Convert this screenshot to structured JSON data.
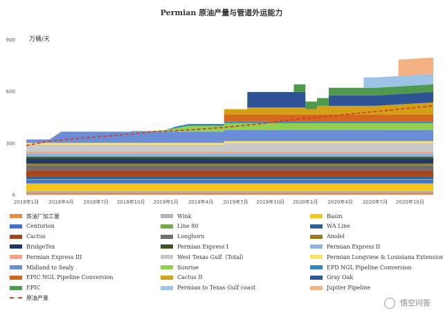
{
  "chart_data": {
    "type": "area",
    "stacked": true,
    "title": "Permian 原油产量与管道外运能力",
    "unit_label": "万桶/天",
    "ylim": [
      0,
      900
    ],
    "yticks": [
      0,
      300,
      600,
      900
    ],
    "xlim": [
      "2018-01",
      "2020-12"
    ],
    "x_ticks": [
      "2018年1月",
      "2018年4月",
      "2018年7月",
      "2018年10月",
      "2019年1月",
      "2019年4月",
      "2019年7月",
      "2019年10月",
      "2020年1月",
      "2020年4月",
      "2020年7月",
      "2020年10月"
    ],
    "legend_placement": "bottom",
    "series": [
      {
        "name": "炼油厂加工量",
        "color": "#e98a4a",
        "points": [
          [
            "2018-01",
            10
          ],
          [
            "2020-12",
            10
          ]
        ]
      },
      {
        "name": "Wink",
        "color": "#b3b3b3",
        "points": [
          [
            "2018-01",
            10
          ],
          [
            "2020-12",
            10
          ]
        ]
      },
      {
        "name": "Basin",
        "color": "#f5c518",
        "points": [
          [
            "2018-01",
            45
          ],
          [
            "2020-12",
            45
          ]
        ]
      },
      {
        "name": "Centurion",
        "color": "#4472c4",
        "points": [
          [
            "2018-01",
            20
          ],
          [
            "2020-12",
            20
          ]
        ]
      },
      {
        "name": "Line 80",
        "color": "#70ad47",
        "points": [
          [
            "2018-01",
            5
          ],
          [
            "2020-12",
            5
          ]
        ]
      },
      {
        "name": "WA Line",
        "color": "#2e5f9a",
        "points": [
          [
            "2018-01",
            15
          ],
          [
            "2020-12",
            15
          ]
        ]
      },
      {
        "name": "Cactus",
        "color": "#a5461d",
        "points": [
          [
            "2018-01",
            35
          ],
          [
            "2020-12",
            35
          ]
        ]
      },
      {
        "name": "Longhorn",
        "color": "#6f6f6f",
        "points": [
          [
            "2018-01",
            30
          ],
          [
            "2020-12",
            30
          ]
        ]
      },
      {
        "name": "Amdel",
        "color": "#9a7b22",
        "points": [
          [
            "2018-01",
            10
          ],
          [
            "2020-12",
            10
          ]
        ]
      },
      {
        "name": "BridgeTex",
        "color": "#1f3864",
        "points": [
          [
            "2018-01",
            30
          ],
          [
            "2020-12",
            30
          ]
        ]
      },
      {
        "name": "Permian Express I",
        "color": "#375623",
        "points": [
          [
            "2018-01",
            10
          ],
          [
            "2020-12",
            10
          ]
        ]
      },
      {
        "name": "Permian Express II",
        "color": "#8fb4e0",
        "points": [
          [
            "2018-01",
            20
          ],
          [
            "2020-12",
            20
          ]
        ]
      },
      {
        "name": "Permian Express III",
        "color": "#f4a580",
        "points": [
          [
            "2018-01",
            10
          ],
          [
            "2020-12",
            10
          ]
        ]
      },
      {
        "name": "West Texas Gulf（Total）",
        "color": "#c9c9c9",
        "points": [
          [
            "2018-01",
            40
          ],
          [
            "2019-06",
            40
          ],
          [
            "2019-06.01",
            50
          ],
          [
            "2020-12",
            50
          ]
        ]
      },
      {
        "name": "Permian Longview & Louisiana Extension",
        "color": "#ffe26a",
        "points": [
          [
            "2018-01",
            10
          ],
          [
            "2020-12",
            10
          ]
        ]
      },
      {
        "name": "Midland to Sealy",
        "color": "#6c8ed6",
        "points": [
          [
            "2018-01",
            20
          ],
          [
            "2018-03",
            20
          ],
          [
            "2018-04",
            65
          ],
          [
            "2020-12",
            65
          ]
        ]
      },
      {
        "name": "Sunrise",
        "color": "#92d050",
        "points": [
          [
            "2018-01",
            0
          ],
          [
            "2018-10",
            0
          ],
          [
            "2018-10.01",
            5
          ],
          [
            "2018-12",
            5
          ],
          [
            "2019-01",
            10
          ],
          [
            "2019-03",
            35
          ],
          [
            "2019-06",
            35
          ],
          [
            "2019-06.01",
            40
          ],
          [
            "2020-12",
            40
          ]
        ]
      },
      {
        "name": "EPD NGL Pipeline Conversion",
        "color": "#2e86c1",
        "points": [
          [
            "2018-01",
            0
          ],
          [
            "2019-01",
            0
          ],
          [
            "2019-02",
            10
          ],
          [
            "2020-12",
            10
          ]
        ]
      },
      {
        "name": "EPIC NGL Pipeline Conversion",
        "color": "#d2691e",
        "points": [
          [
            "2018-01",
            0
          ],
          [
            "2019-06",
            0
          ],
          [
            "2019-06.01",
            40
          ],
          [
            "2020-12",
            40
          ]
        ]
      },
      {
        "name": "Cactus II",
        "color": "#d4a017",
        "points": [
          [
            "2018-01",
            0
          ],
          [
            "2019-06",
            0
          ],
          [
            "2019-06.01",
            30
          ],
          [
            "2019-08",
            30
          ],
          [
            "2019-08.01",
            40
          ],
          [
            "2020-01",
            40
          ],
          [
            "2020-01.01",
            30
          ],
          [
            "2020-02",
            30
          ],
          [
            "2020-02.01",
            50
          ],
          [
            "2020-07",
            50
          ],
          [
            "2020-12",
            70
          ]
        ]
      },
      {
        "name": "Gray Oak",
        "color": "#2f5496",
        "points": [
          [
            "2018-01",
            0
          ],
          [
            "2019-08",
            0
          ],
          [
            "2019-08.01",
            90
          ],
          [
            "2020-01",
            90
          ],
          [
            "2020-01.01",
            0
          ],
          [
            "2020-03",
            0
          ],
          [
            "2020-03.01",
            60
          ],
          [
            "2020-12",
            60
          ]
        ]
      },
      {
        "name": "EPIC",
        "color": "#4f9a4f",
        "points": [
          [
            "2018-01",
            0
          ],
          [
            "2019-12",
            0
          ],
          [
            "2019-12.01",
            45
          ],
          [
            "2020-12",
            45
          ]
        ]
      },
      {
        "name": "Permian to Texas Gulf coast",
        "color": "#9dc3e6",
        "points": [
          [
            "2018-01",
            0
          ],
          [
            "2020-06",
            0
          ],
          [
            "2020-06.01",
            60
          ],
          [
            "2020-12",
            60
          ]
        ]
      },
      {
        "name": "Jupiter Pipeline",
        "color": "#f4b183",
        "points": [
          [
            "2018-01",
            0
          ],
          [
            "2020-09",
            0
          ],
          [
            "2020-09.01",
            95
          ],
          [
            "2020-12",
            95
          ]
        ]
      }
    ],
    "line_series": {
      "name": "原油产量",
      "color": "#d93b2b",
      "style": "dashed",
      "points": [
        [
          "2018-01",
          285
        ],
        [
          "2018-03",
          310
        ],
        [
          "2018-06",
          330
        ],
        [
          "2018-09",
          345
        ],
        [
          "2018-12",
          365
        ],
        [
          "2019-03",
          375
        ],
        [
          "2019-06",
          390
        ],
        [
          "2019-09",
          410
        ],
        [
          "2019-12",
          435
        ],
        [
          "2020-03",
          455
        ],
        [
          "2020-06",
          475
        ],
        [
          "2020-09",
          495
        ],
        [
          "2020-12",
          515
        ]
      ]
    }
  },
  "watermark": "悟空问答"
}
